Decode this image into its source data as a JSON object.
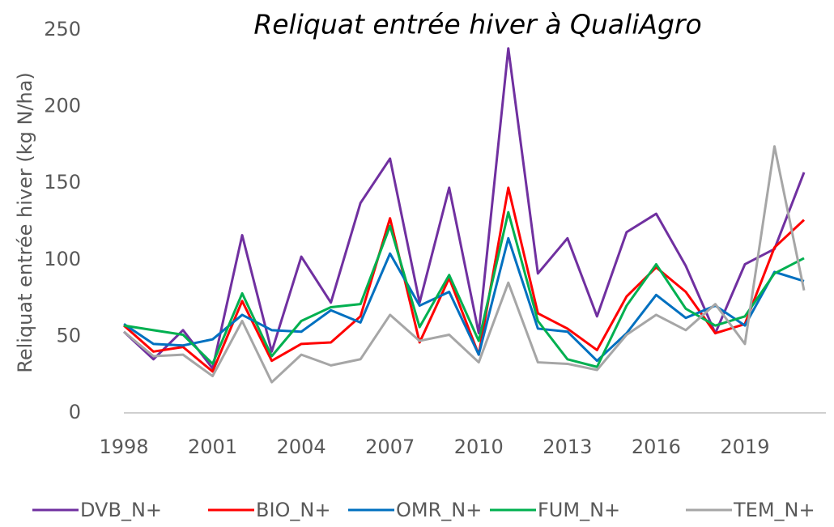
{
  "chart_data": {
    "type": "line",
    "title": "Reliquat entrée hiver à QualiAgro",
    "y_label": "Reliquat entrée hiver (kg N/ha)",
    "x": [
      1998,
      1999,
      2000,
      2001,
      2002,
      2003,
      2004,
      2005,
      2006,
      2007,
      2008,
      2009,
      2010,
      2011,
      2012,
      2013,
      2014,
      2015,
      2016,
      2017,
      2018,
      2019,
      2020,
      2021
    ],
    "xlim": [
      1998,
      2021
    ],
    "xticks": [
      1998,
      2001,
      2004,
      2007,
      2010,
      2013,
      2016,
      2019
    ],
    "ylim": [
      0,
      250
    ],
    "yticks": [
      0,
      50,
      100,
      150,
      200,
      250
    ],
    "grid": false,
    "legend": "bottom",
    "series": [
      {
        "name": "DVB_N+",
        "color": "#7030a0",
        "values": [
          53,
          35,
          54,
          29,
          116,
          40,
          102,
          72,
          137,
          166,
          72,
          147,
          52,
          238,
          91,
          114,
          63,
          118,
          130,
          96,
          52,
          97,
          107,
          157
        ]
      },
      {
        "name": "BIO_N+",
        "color": "#ff0000",
        "values": [
          57,
          40,
          43,
          27,
          73,
          34,
          45,
          46,
          63,
          127,
          46,
          88,
          38,
          147,
          65,
          55,
          41,
          76,
          95,
          79,
          52,
          58,
          108,
          126
        ]
      },
      {
        "name": "OMR_N+",
        "color": "#0070c0",
        "values": [
          58,
          45,
          44,
          48,
          64,
          54,
          53,
          67,
          59,
          104,
          70,
          79,
          38,
          114,
          55,
          53,
          34,
          52,
          77,
          62,
          70,
          57,
          92,
          86
        ]
      },
      {
        "name": "FUM_N+",
        "color": "#00b050",
        "values": [
          57,
          54,
          51,
          32,
          78,
          37,
          60,
          69,
          71,
          122,
          56,
          90,
          47,
          131,
          60,
          35,
          30,
          70,
          97,
          68,
          57,
          63,
          91,
          101
        ]
      },
      {
        "name": "TEM_N+",
        "color": "#a6a6a6",
        "values": [
          53,
          37,
          38,
          24,
          60,
          20,
          38,
          31,
          35,
          64,
          47,
          51,
          33,
          85,
          33,
          32,
          28,
          51,
          64,
          54,
          71,
          45,
          174,
          80
        ]
      }
    ]
  }
}
